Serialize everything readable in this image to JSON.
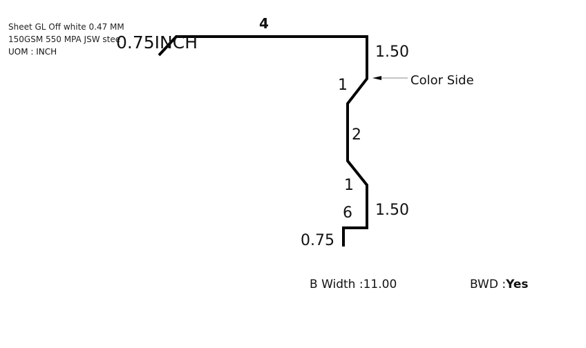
{
  "spec": {
    "line1": "Sheet GL Off white 0.47 MM",
    "line2": "150GSM 550 MPA JSW stee",
    "uom": "UOM : INCH"
  },
  "profile": {
    "dimensions": {
      "top_left": "0.75INCH",
      "top_length": "4",
      "right_upper": "1.50",
      "bend_upper": "1",
      "middle": "2",
      "bend_lower": "1",
      "right_lower": "1.50",
      "bottom_inner": "6",
      "bottom_left": "0.75"
    },
    "color_side_label": "Color Side"
  },
  "footer": {
    "bwidth_label": "B Width :",
    "bwidth_value": "11.00",
    "bwd_label": "BWD :",
    "bwd_value": "Yes"
  }
}
